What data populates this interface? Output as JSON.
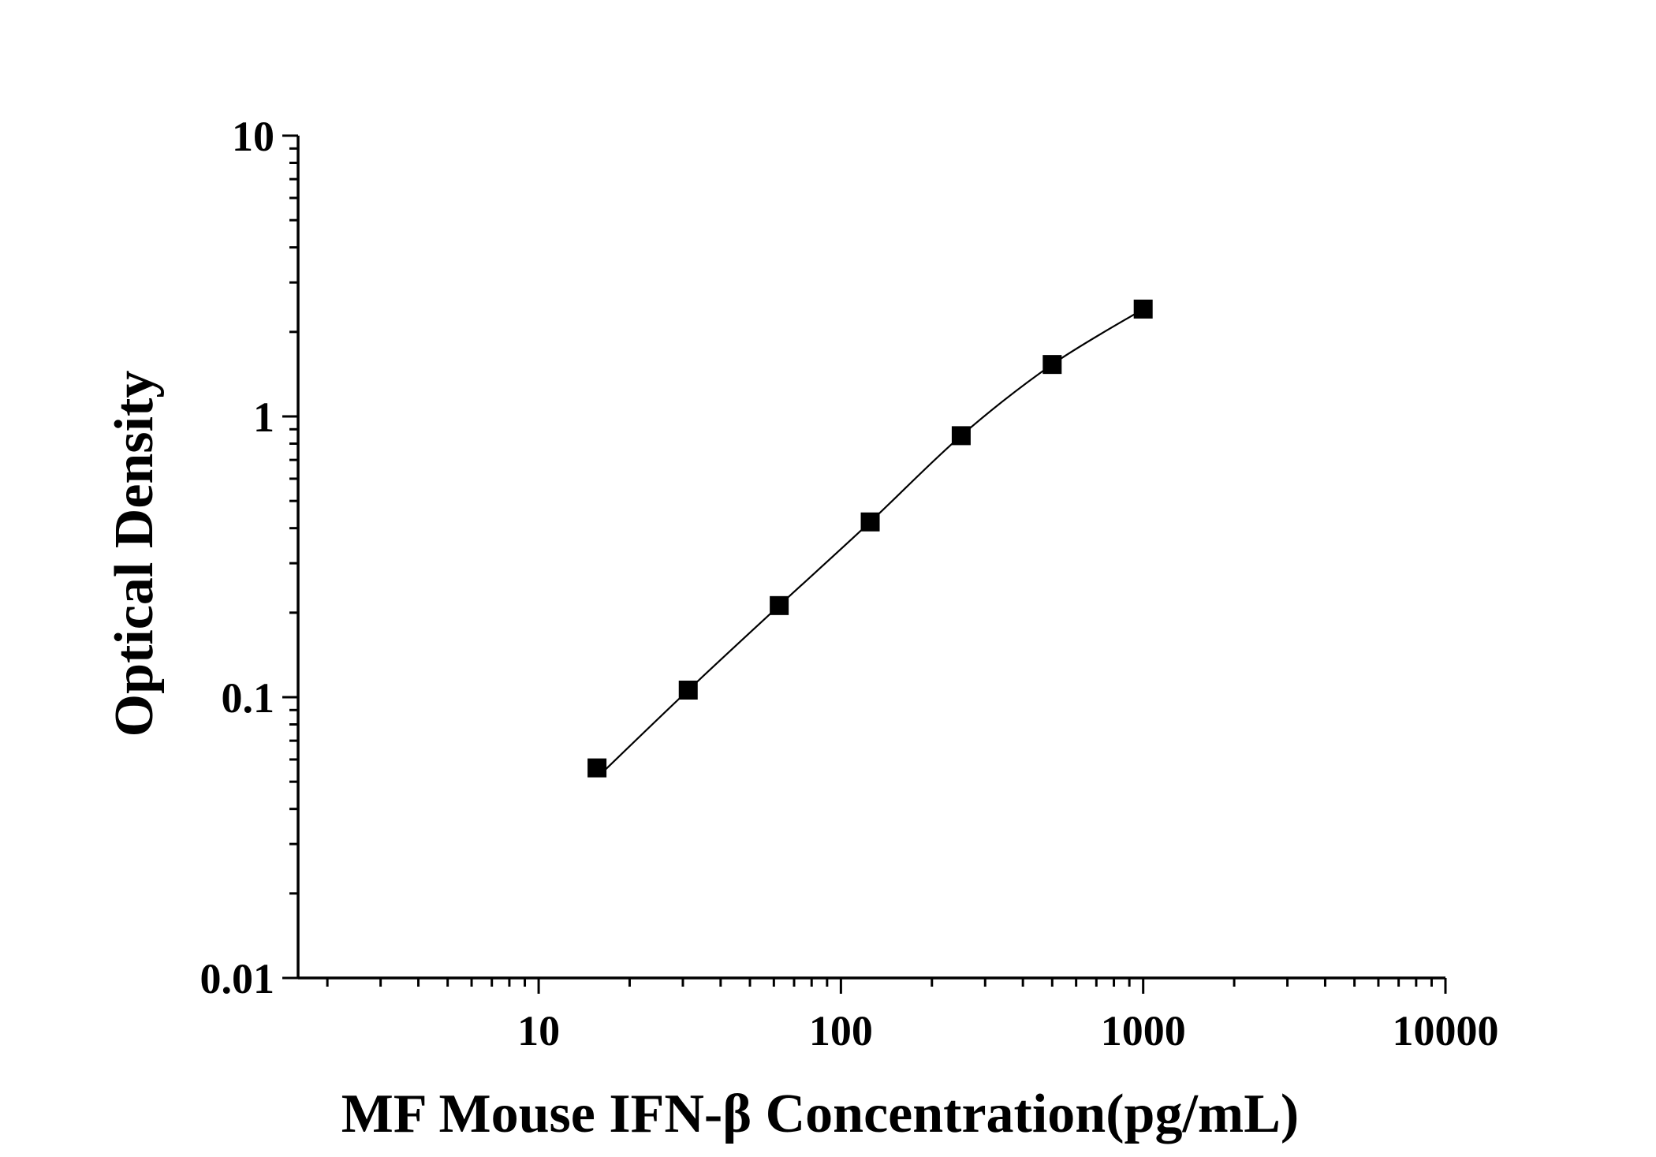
{
  "chart_data": {
    "type": "line",
    "xlabel": "MF Mouse IFN-β Concentration(pg/mL)",
    "ylabel": "Optical Density",
    "xscale": "log",
    "yscale": "log",
    "xlim": [
      1.6,
      10000
    ],
    "ylim": [
      0.01,
      10
    ],
    "x_ticks": [
      10,
      100,
      1000,
      10000
    ],
    "x_tick_labels": [
      "10",
      "100",
      "1000",
      "10000"
    ],
    "y_ticks": [
      0.01,
      0.1,
      1,
      10
    ],
    "y_tick_labels": [
      "0.01",
      "0.1",
      "1",
      "10"
    ],
    "grid": false,
    "legend": "none",
    "series": [
      {
        "x": [
          15.6,
          31.25,
          62.5,
          125,
          250,
          500,
          1000
        ],
        "y": [
          0.056,
          0.106,
          0.212,
          0.421,
          0.854,
          1.531,
          2.412
        ],
        "marker": "square",
        "line": "fitted-curve"
      }
    ],
    "colors": {
      "marker": "#000000",
      "line": "#000000",
      "axis": "#000000",
      "background": "#ffffff"
    }
  }
}
